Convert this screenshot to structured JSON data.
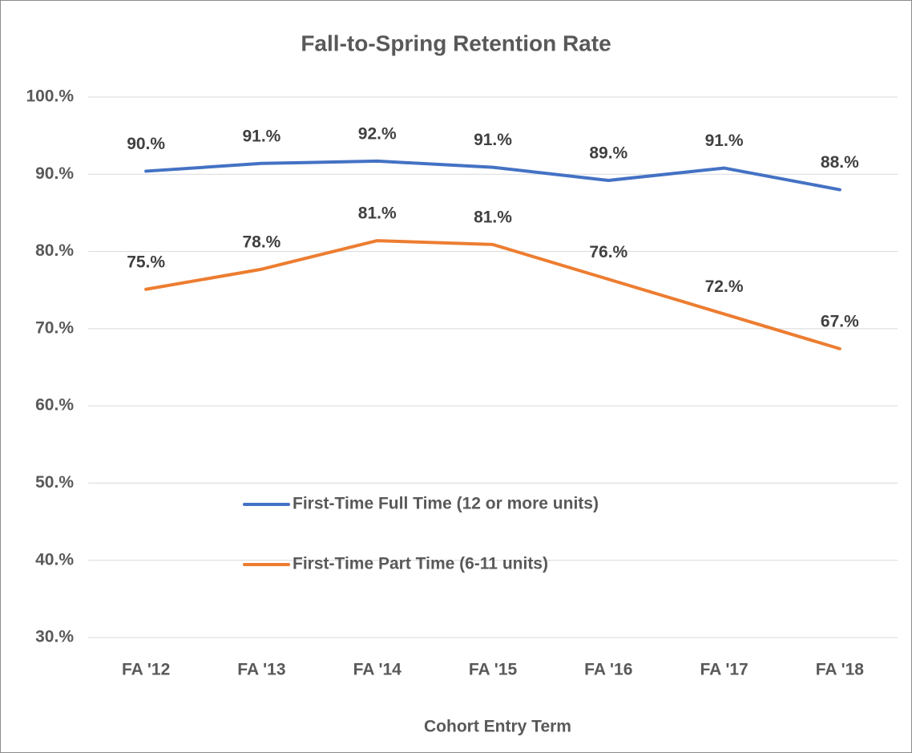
{
  "chart_data": {
    "type": "line",
    "title": "Fall-to-Spring Retention Rate",
    "x_label": "Cohort Entry Term",
    "categories": [
      "FA '12",
      "FA '13",
      "FA '14",
      "FA '15",
      "FA '16",
      "FA '17",
      "FA '18"
    ],
    "series": [
      {
        "name": "First-Time Full Time (12 or more units)",
        "color": "#4472c4",
        "values": [
          90.4,
          91.4,
          91.7,
          90.9,
          89.2,
          90.8,
          88.0
        ],
        "value_labels": [
          "90.%",
          "91.%",
          "92.%",
          "91.%",
          "89.%",
          "91.%",
          "88.%"
        ]
      },
      {
        "name": "First-Time Part Time (6-11 units)",
        "color": "#ed7d31",
        "values": [
          75.1,
          77.7,
          81.4,
          80.9,
          76.4,
          71.9,
          67.4
        ],
        "value_labels": [
          "75.%",
          "78.%",
          "81.%",
          "81.%",
          "76.%",
          "72.%",
          "67.%"
        ]
      }
    ],
    "ylim": [
      30,
      100
    ],
    "yticks": [
      {
        "value": 30,
        "label": "30.%"
      },
      {
        "value": 40,
        "label": "40.%"
      },
      {
        "value": 50,
        "label": "50.%"
      },
      {
        "value": 60,
        "label": "60.%"
      },
      {
        "value": 70,
        "label": "70.%"
      },
      {
        "value": 80,
        "label": "80.%"
      },
      {
        "value": 90,
        "label": "90.%"
      },
      {
        "value": 100,
        "label": "100.%"
      }
    ],
    "grid": true,
    "legend": "center"
  }
}
